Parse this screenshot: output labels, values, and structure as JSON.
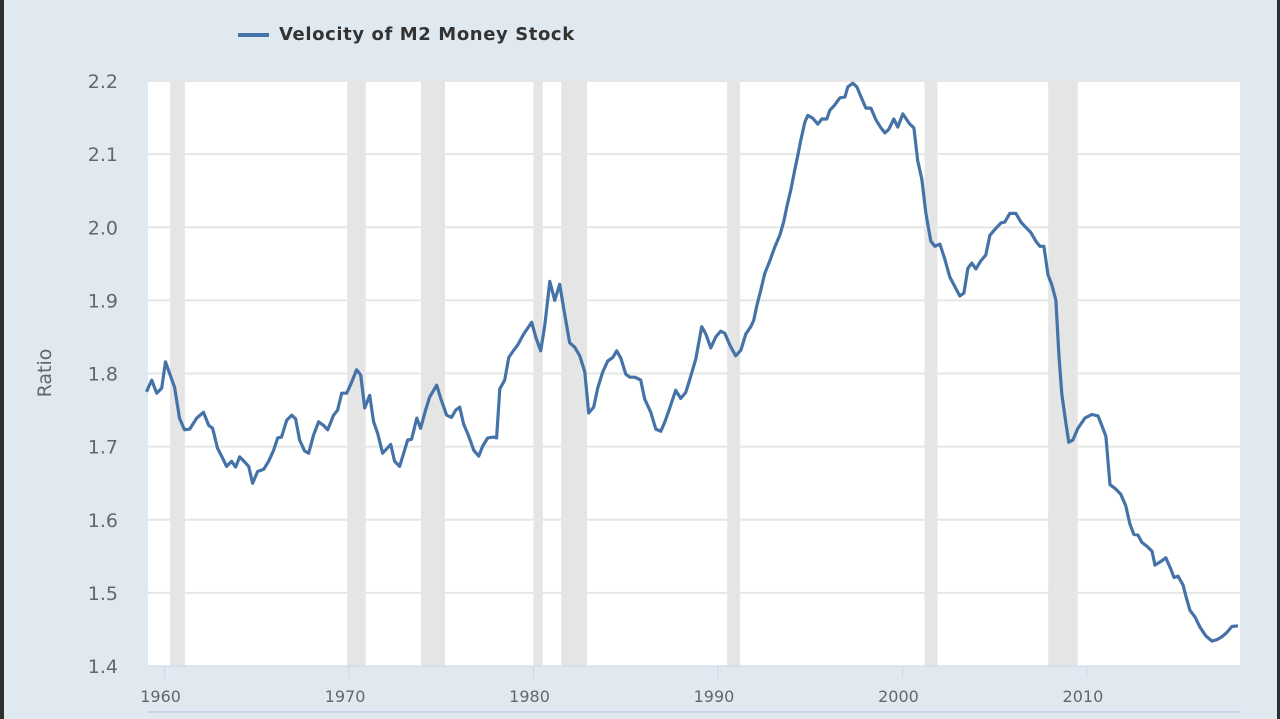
{
  "chart_data": {
    "type": "line",
    "title": "",
    "xlabel": "",
    "ylabel": "Ratio",
    "xlim": [
      1959.1,
      2018.3
    ],
    "ylim": [
      1.4,
      2.2
    ],
    "grid": true,
    "legend_placement": "top-left",
    "yticks": [
      "1.4",
      "1.5",
      "1.6",
      "1.7",
      "1.8",
      "1.9",
      "2.0",
      "2.1",
      "2.2"
    ],
    "ytick_values": [
      1.4,
      1.5,
      1.6,
      1.7,
      1.8,
      1.9,
      2.0,
      2.1,
      2.2
    ],
    "xticks": [
      "1960",
      "1970",
      "1980",
      "1990",
      "2000",
      "2010"
    ],
    "xtick_values": [
      1960,
      1970,
      1980,
      1990,
      2000,
      2010
    ],
    "recessions": [
      [
        1960.3,
        1961.1
      ],
      [
        1969.9,
        1970.9
      ],
      [
        1973.9,
        1975.2
      ],
      [
        1980.0,
        1980.5
      ],
      [
        1981.5,
        1982.9
      ],
      [
        1990.5,
        1991.2
      ],
      [
        2001.2,
        2001.9
      ],
      [
        2007.9,
        2009.5
      ]
    ],
    "series": [
      {
        "name": "Velocity of M2 Money Stock",
        "color": "#4572a7",
        "x": [
          1959.02,
          1959.3,
          1959.57,
          1959.84,
          1960.05,
          1960.54,
          1960.81,
          1961.08,
          1961.36,
          1961.74,
          1962.11,
          1962.39,
          1962.6,
          1962.87,
          1963.09,
          1963.36,
          1963.63,
          1963.85,
          1964.07,
          1964.34,
          1964.56,
          1964.77,
          1965.04,
          1965.37,
          1965.64,
          1965.91,
          1966.13,
          1966.34,
          1966.62,
          1966.89,
          1967.1,
          1967.32,
          1967.59,
          1967.81,
          1968.08,
          1968.35,
          1968.62,
          1968.84,
          1969.16,
          1969.38,
          1969.6,
          1969.87,
          1970.14,
          1970.41,
          1970.63,
          1970.85,
          1971.12,
          1971.33,
          1971.55,
          1971.82,
          1972.04,
          1972.26,
          1972.47,
          1972.74,
          1972.96,
          1973.18,
          1973.39,
          1973.67,
          1973.88,
          1974.15,
          1974.37,
          1974.75,
          1974.97,
          1975.29,
          1975.56,
          1975.78,
          1976.0,
          1976.21,
          1976.49,
          1976.76,
          1977.03,
          1977.25,
          1977.52,
          1977.84,
          1978.0,
          1978.17,
          1978.44,
          1978.66,
          1978.93,
          1979.14,
          1979.47,
          1979.9,
          1980.12,
          1980.39,
          1980.61,
          1980.88,
          1981.15,
          1981.42,
          1981.69,
          1981.96,
          1982.23,
          1982.51,
          1982.78,
          1982.99,
          1983.26,
          1983.48,
          1983.75,
          1984.02,
          1984.3,
          1984.51,
          1984.73,
          1985.0,
          1985.22,
          1985.49,
          1985.81,
          1986.03,
          1986.36,
          1986.63,
          1986.9,
          1987.12,
          1987.39,
          1987.71,
          1987.98,
          1988.25,
          1988.47,
          1988.8,
          1989.12,
          1989.34,
          1989.61,
          1989.88,
          1990.15,
          1990.37,
          1990.64,
          1990.96,
          1991.24,
          1991.51,
          1991.78,
          1991.94,
          1992.1,
          1992.32,
          1992.54,
          1992.81,
          1993.08,
          1993.35,
          1993.57,
          1993.73,
          1993.95,
          1994.16,
          1994.33,
          1994.49,
          1994.71,
          1994.87,
          1995.14,
          1995.41,
          1995.63,
          1995.9,
          1996.06,
          1996.33,
          1996.61,
          1996.88,
          1997.04,
          1997.31,
          1997.53,
          1997.74,
          1998.02,
          1998.29,
          1998.56,
          1998.83,
          1999.05,
          1999.26,
          1999.53,
          1999.75,
          2000.02,
          2000.4,
          2000.62,
          2000.83,
          2001.05,
          2001.27,
          2001.54,
          2001.76,
          2002.03,
          2002.3,
          2002.57,
          2002.84,
          2003.11,
          2003.33,
          2003.55,
          2003.76,
          2003.98,
          2004.25,
          2004.52,
          2004.74,
          2005.01,
          2005.34,
          2005.55,
          2005.82,
          2006.15,
          2006.42,
          2006.69,
          2006.96,
          2007.23,
          2007.45,
          2007.67,
          2007.89,
          2008.1,
          2008.32,
          2008.48,
          2008.64,
          2008.86,
          2009.02,
          2009.24,
          2009.51,
          2009.89,
          2010.27,
          2010.6,
          2010.87,
          2011.03,
          2011.25,
          2011.52,
          2011.84,
          2012.11,
          2012.33,
          2012.55,
          2012.77,
          2012.98,
          2013.25,
          2013.53,
          2013.69,
          2014.01,
          2014.28,
          2014.56,
          2014.72,
          2014.94,
          2015.21,
          2015.37,
          2015.59,
          2015.86,
          2016.13,
          2016.45,
          2016.78,
          2017.05,
          2017.32,
          2017.59,
          2017.86,
          2018.19
        ],
        "y": [
          1.775,
          1.791,
          1.773,
          1.78,
          1.816,
          1.781,
          1.739,
          1.723,
          1.724,
          1.739,
          1.747,
          1.729,
          1.725,
          1.698,
          1.687,
          1.673,
          1.68,
          1.672,
          1.686,
          1.679,
          1.673,
          1.65,
          1.666,
          1.669,
          1.68,
          1.695,
          1.712,
          1.713,
          1.736,
          1.743,
          1.738,
          1.709,
          1.694,
          1.691,
          1.716,
          1.734,
          1.729,
          1.723,
          1.743,
          1.75,
          1.773,
          1.773,
          1.788,
          1.805,
          1.798,
          1.753,
          1.77,
          1.734,
          1.718,
          1.691,
          1.697,
          1.703,
          1.68,
          1.673,
          1.691,
          1.709,
          1.71,
          1.739,
          1.725,
          1.75,
          1.768,
          1.784,
          1.766,
          1.743,
          1.74,
          1.75,
          1.754,
          1.731,
          1.714,
          1.695,
          1.687,
          1.701,
          1.712,
          1.713,
          1.712,
          1.779,
          1.791,
          1.822,
          1.832,
          1.839,
          1.854,
          1.87,
          1.85,
          1.831,
          1.866,
          1.926,
          1.9,
          1.922,
          1.881,
          1.842,
          1.836,
          1.824,
          1.802,
          1.746,
          1.754,
          1.78,
          1.802,
          1.817,
          1.822,
          1.831,
          1.821,
          1.799,
          1.795,
          1.795,
          1.791,
          1.765,
          1.747,
          1.724,
          1.721,
          1.734,
          1.753,
          1.777,
          1.766,
          1.774,
          1.792,
          1.82,
          1.864,
          1.854,
          1.835,
          1.85,
          1.858,
          1.855,
          1.839,
          1.824,
          1.832,
          1.854,
          1.864,
          1.873,
          1.892,
          1.914,
          1.937,
          1.954,
          1.973,
          1.989,
          2.008,
          2.028,
          2.051,
          2.078,
          2.099,
          2.119,
          2.144,
          2.153,
          2.149,
          2.141,
          2.148,
          2.148,
          2.16,
          2.167,
          2.177,
          2.178,
          2.192,
          2.197,
          2.192,
          2.179,
          2.163,
          2.163,
          2.147,
          2.136,
          2.129,
          2.134,
          2.148,
          2.137,
          2.155,
          2.141,
          2.136,
          2.091,
          2.066,
          2.019,
          1.981,
          1.974,
          1.977,
          1.956,
          1.932,
          1.919,
          1.906,
          1.91,
          1.944,
          1.951,
          1.943,
          1.954,
          1.962,
          1.989,
          1.997,
          2.006,
          2.007,
          2.019,
          2.019,
          2.007,
          2.0,
          1.993,
          1.981,
          1.974,
          1.974,
          1.935,
          1.921,
          1.9,
          1.825,
          1.772,
          1.732,
          1.706,
          1.709,
          1.725,
          1.739,
          1.744,
          1.742,
          1.725,
          1.714,
          1.648,
          1.643,
          1.635,
          1.619,
          1.594,
          1.58,
          1.579,
          1.569,
          1.564,
          1.557,
          1.538,
          1.543,
          1.548,
          1.532,
          1.521,
          1.523,
          1.511,
          1.495,
          1.476,
          1.467,
          1.453,
          1.441,
          1.434,
          1.436,
          1.44,
          1.446,
          1.454,
          1.455
        ]
      }
    ]
  }
}
